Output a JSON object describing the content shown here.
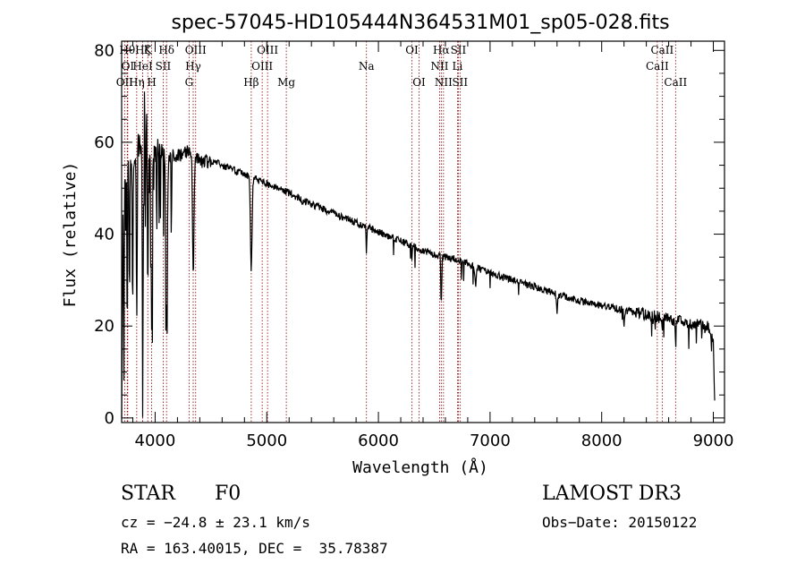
{
  "chart_data": {
    "type": "line",
    "title": "spec-57045-HD105444N364531M01_sp05-028.fits",
    "xlabel": "Wavelength (Å)",
    "ylabel": "Flux (relative)",
    "xlim": [
      3700,
      9100
    ],
    "ylim": [
      -1,
      82
    ],
    "xticks": [
      4000,
      5000,
      6000,
      7000,
      8000,
      9000
    ],
    "yticks": [
      0,
      20,
      40,
      60,
      80
    ],
    "line_color": "#000000",
    "marker_color": "#8b0000",
    "spectral_lines": [
      {
        "label": "OII",
        "x": 3727,
        "row": 2
      },
      {
        "label": "Hθ",
        "x": 3750,
        "row": 0
      },
      {
        "label": "OI",
        "x": 3755,
        "row": 1
      },
      {
        "label": "Hη",
        "x": 3835,
        "row": 2
      },
      {
        "label": "Hζ",
        "x": 3889,
        "row": 0
      },
      {
        "label": "HeI",
        "x": 3889,
        "row": 1
      },
      {
        "label": "K",
        "x": 3934,
        "row": 0
      },
      {
        "label": "H",
        "x": 3969,
        "row": 2
      },
      {
        "label": "SII",
        "x": 4072,
        "row": 1
      },
      {
        "label": "Hδ",
        "x": 4102,
        "row": 0
      },
      {
        "label": "G",
        "x": 4304,
        "row": 2
      },
      {
        "label": "Hγ",
        "x": 4341,
        "row": 1
      },
      {
        "label": "OIII",
        "x": 4363,
        "row": 0
      },
      {
        "label": "Hβ",
        "x": 4861,
        "row": 2
      },
      {
        "label": "OIII",
        "x": 4959,
        "row": 1
      },
      {
        "label": "OIII",
        "x": 5007,
        "row": 0
      },
      {
        "label": "Mg",
        "x": 5175,
        "row": 2
      },
      {
        "label": "Na",
        "x": 5893,
        "row": 1
      },
      {
        "label": "OI",
        "x": 6300,
        "row": 0
      },
      {
        "label": "OI",
        "x": 6364,
        "row": 2
      },
      {
        "label": "NII",
        "x": 6548,
        "row": 1
      },
      {
        "label": "Hα",
        "x": 6563,
        "row": 0
      },
      {
        "label": "NII",
        "x": 6583,
        "row": 2
      },
      {
        "label": "Li",
        "x": 6708,
        "row": 1
      },
      {
        "label": "SII",
        "x": 6716,
        "row": 0
      },
      {
        "label": "SII",
        "x": 6731,
        "row": 2
      },
      {
        "label": "CaII",
        "x": 8498,
        "row": 1
      },
      {
        "label": "CaII",
        "x": 8542,
        "row": 0
      },
      {
        "label": "CaII",
        "x": 8662,
        "row": 2
      }
    ],
    "continuum": [
      [
        3700,
        0
      ],
      [
        3712,
        45
      ],
      [
        3730,
        52
      ],
      [
        3760,
        55
      ],
      [
        3800,
        57
      ],
      [
        3850,
        60
      ],
      [
        3900,
        61
      ],
      [
        3950,
        60
      ],
      [
        4000,
        58
      ],
      [
        4100,
        57
      ],
      [
        4200,
        57
      ],
      [
        4300,
        58
      ],
      [
        4400,
        56
      ],
      [
        4500,
        56
      ],
      [
        4600,
        55
      ],
      [
        4700,
        54
      ],
      [
        4800,
        53
      ],
      [
        4900,
        52
      ],
      [
        5000,
        51
      ],
      [
        5100,
        50
      ],
      [
        5200,
        49
      ],
      [
        5300,
        47.5
      ],
      [
        5400,
        46.5
      ],
      [
        5500,
        45.5
      ],
      [
        5600,
        44.5
      ],
      [
        5700,
        43.5
      ],
      [
        5800,
        42.5
      ],
      [
        5900,
        41.5
      ],
      [
        6000,
        40.5
      ],
      [
        6100,
        39.5
      ],
      [
        6200,
        38.5
      ],
      [
        6300,
        37.5
      ],
      [
        6400,
        36.5
      ],
      [
        6500,
        35.5
      ],
      [
        6600,
        35
      ],
      [
        6700,
        34.5
      ],
      [
        6800,
        33.5
      ],
      [
        6900,
        32.5
      ],
      [
        7000,
        31.5
      ],
      [
        7200,
        30
      ],
      [
        7400,
        28.5
      ],
      [
        7600,
        27
      ],
      [
        7800,
        25.5
      ],
      [
        8000,
        24.5
      ],
      [
        8200,
        23.5
      ],
      [
        8400,
        22.5
      ],
      [
        8600,
        21.5
      ],
      [
        8800,
        20.5
      ],
      [
        8950,
        20
      ],
      [
        9000,
        17
      ],
      [
        9010,
        5
      ],
      [
        9015,
        2
      ]
    ],
    "absorption_features": [
      {
        "x": 3720,
        "depth": 40,
        "width": 4
      },
      {
        "x": 3750,
        "depth": 35,
        "width": 4
      },
      {
        "x": 3770,
        "depth": 30,
        "width": 5
      },
      {
        "x": 3798,
        "depth": 33,
        "width": 5
      },
      {
        "x": 3835,
        "depth": 38,
        "width": 6
      },
      {
        "x": 3889,
        "depth": 42,
        "width": 7
      },
      {
        "x": 3934,
        "depth": 30,
        "width": 6
      },
      {
        "x": 3969,
        "depth": 40,
        "width": 8
      },
      {
        "x": 4102,
        "depth": 35,
        "width": 10
      },
      {
        "x": 4341,
        "depth": 26,
        "width": 9
      },
      {
        "x": 4861,
        "depth": 20,
        "width": 10
      },
      {
        "x": 5893,
        "depth": 6,
        "width": 4
      },
      {
        "x": 6300,
        "depth": 4,
        "width": 3
      },
      {
        "x": 6563,
        "depth": 9,
        "width": 6
      },
      {
        "x": 6870,
        "depth": 4,
        "width": 8
      },
      {
        "x": 7600,
        "depth": 4,
        "width": 8
      },
      {
        "x": 8200,
        "depth": 3,
        "width": 6
      },
      {
        "x": 8542,
        "depth": 3,
        "width": 5
      },
      {
        "x": 8662,
        "depth": 3,
        "width": 5
      }
    ],
    "emission_features": [
      {
        "x": 3905,
        "height": 8,
        "width": 4
      },
      {
        "x": 3925,
        "height": 6,
        "width": 4
      }
    ]
  },
  "info": {
    "object_type": "STAR",
    "subclass": "F0",
    "survey": "LAMOST DR3",
    "redshift": "cz = −24.8 ± 23.1 km/s",
    "obs_date": "Obs−Date: 20150122",
    "coords": "RA = 163.40015, DEC =  35.78387"
  }
}
